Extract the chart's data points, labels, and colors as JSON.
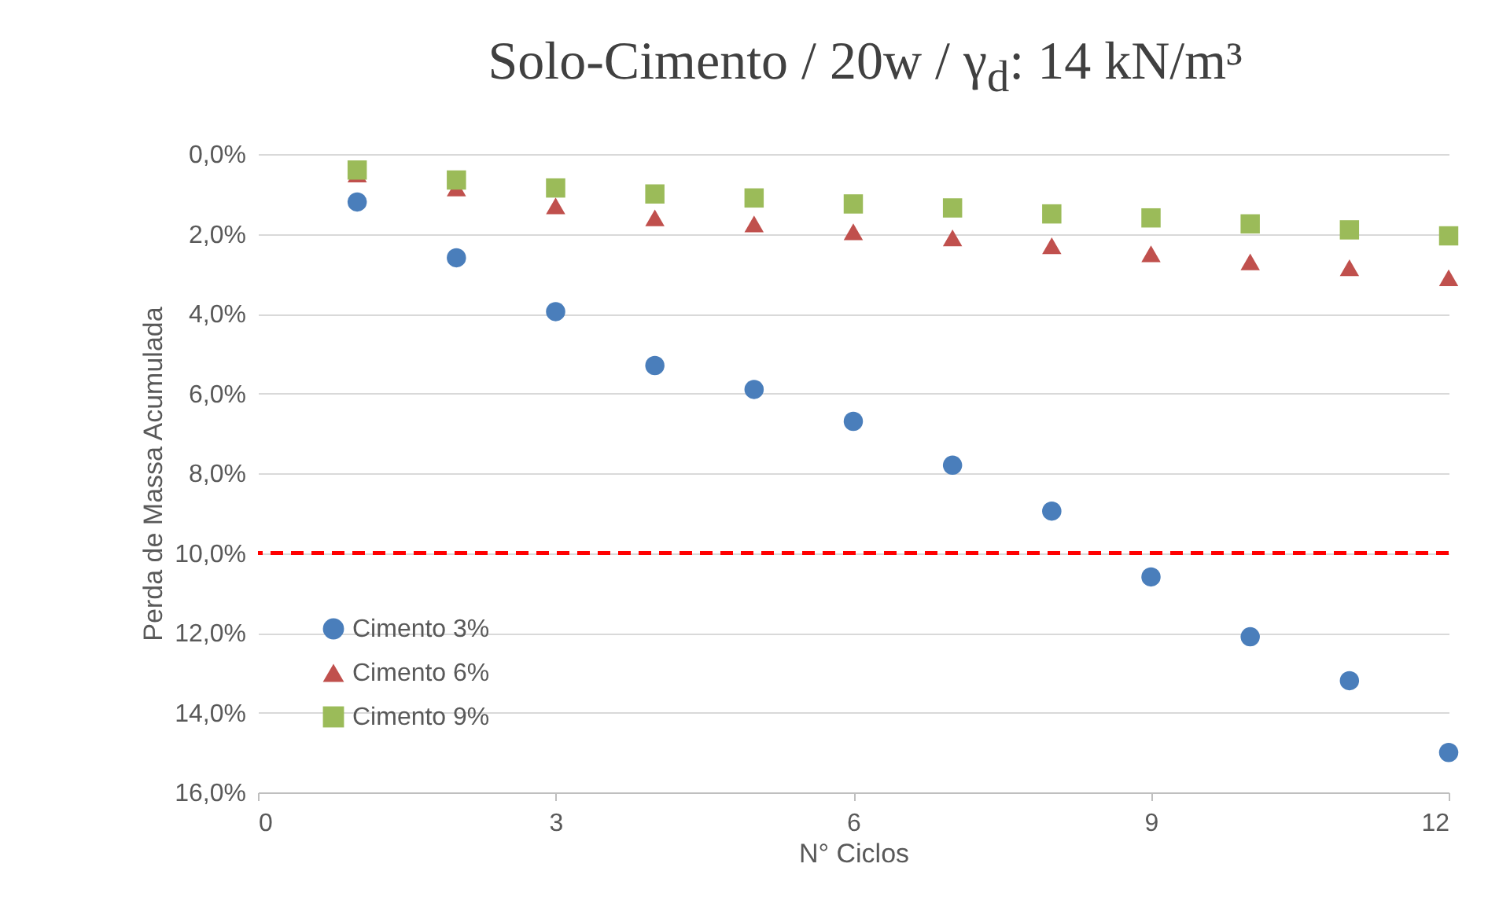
{
  "chart_data": {
    "type": "scatter",
    "title": "Solo-Cimento / 20w / γ$_{d}$: 14 kN/m³",
    "xlabel": "N° Ciclos",
    "ylabel": "Perda de Massa Acumulada",
    "x": [
      1,
      2,
      3,
      4,
      5,
      6,
      7,
      8,
      9,
      10,
      11,
      12
    ],
    "series": [
      {
        "name": "Cimento 3%",
        "color": "#4a7ebb",
        "marker": "circle",
        "values": [
          1.2,
          2.6,
          3.95,
          5.3,
          5.9,
          6.7,
          7.8,
          8.95,
          10.6,
          12.1,
          13.2,
          15.0
        ]
      },
      {
        "name": "Cimento 6%",
        "color": "#c0504d",
        "marker": "triangle",
        "values": [
          0.5,
          0.85,
          1.3,
          1.6,
          1.75,
          1.95,
          2.1,
          2.3,
          2.5,
          2.7,
          2.85,
          3.1
        ]
      },
      {
        "name": "Cimento 9%",
        "color": "#9bbb59",
        "marker": "square",
        "values": [
          0.4,
          0.65,
          0.85,
          1.0,
          1.1,
          1.25,
          1.35,
          1.5,
          1.6,
          1.75,
          1.9,
          2.05
        ]
      }
    ],
    "xlim": [
      0,
      12
    ],
    "xticks": [
      0,
      3,
      6,
      9,
      12
    ],
    "ylim": [
      16,
      0
    ],
    "yticks": [
      {
        "value": 0,
        "label": "0,0%"
      },
      {
        "value": 2,
        "label": "2,0%"
      },
      {
        "value": 4,
        "label": "4,0%"
      },
      {
        "value": 6,
        "label": "6,0%"
      },
      {
        "value": 8,
        "label": "8,0%"
      },
      {
        "value": 10,
        "label": "10,0%"
      },
      {
        "value": 12,
        "label": "12,0%"
      },
      {
        "value": 14,
        "label": "14,0%"
      },
      {
        "value": 16,
        "label": "16,0%"
      }
    ],
    "ref_lines": [
      {
        "axis": "y",
        "value": 10,
        "color": "#ff0000",
        "line_style": "dashed"
      }
    ],
    "grid": "y",
    "legend": "bottom left"
  }
}
